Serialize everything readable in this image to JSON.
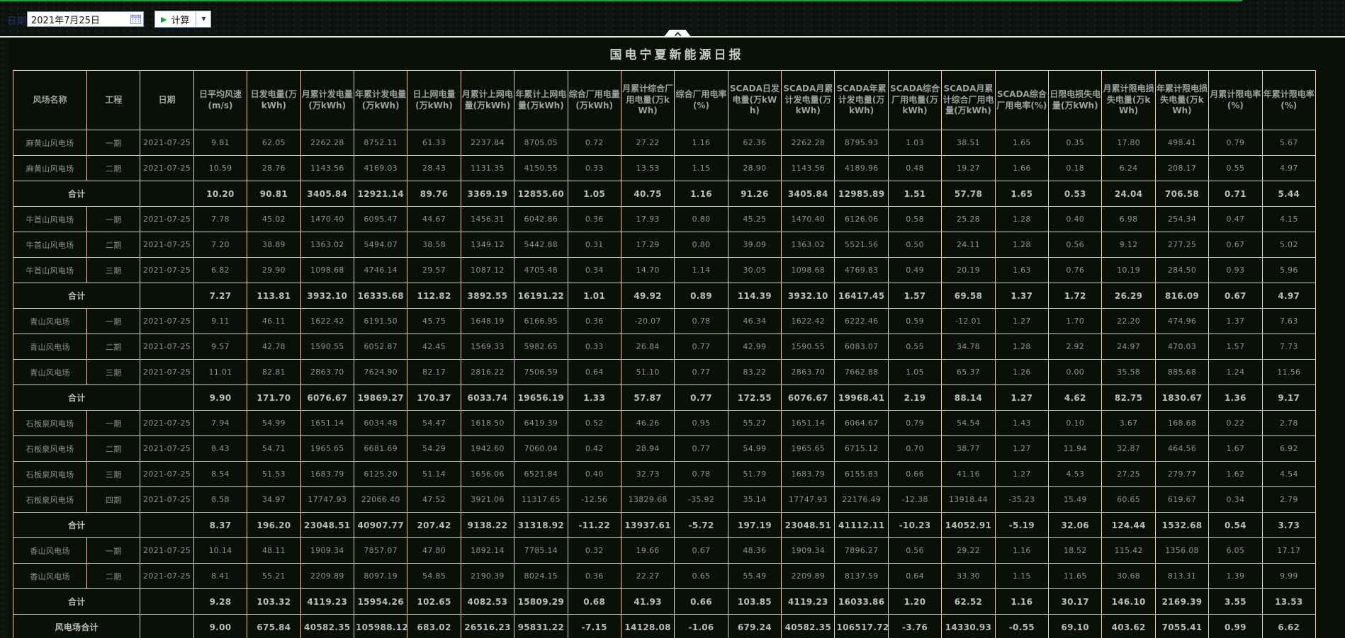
{
  "topbar": {
    "date_label": "日期",
    "date_value": "2021年7月25日",
    "calc_button_label": "计算",
    "icons": {
      "calendar": "calendar-icon",
      "play": "play-icon",
      "dropdown": "chevron-down-icon"
    },
    "colors": {
      "topline_green": "#17a83a",
      "button_play_green": "#12a33a",
      "dropdown_navy": "#24356e"
    }
  },
  "panel": {
    "title": "国电宁夏新能源日报",
    "colors": {
      "panel_bg": "#081008",
      "table_border": "#f0c9ba",
      "text_normal": "#8d9390",
      "text_subtotal": "#b7bdba"
    }
  },
  "table": {
    "headers": [
      "风场名称",
      "工程",
      "日期",
      "日平均风速(m/s)",
      "日发电量(万kWh)",
      "月累计发电量(万kWh)",
      "年累计发电量(万kWh)",
      "日上网电量(万kWh)",
      "月累计上网电量(万kWh)",
      "年累计上网电量(万kWh)",
      "综合厂用电量(万kWh)",
      "月累计综合厂用电量(万kWh)",
      "综合厂用电率(%)",
      "SCADA日发电量(万kWh)",
      "SCADA月累计发电量(万kWh)",
      "SCADA年累计发电量(万kWh)",
      "SCADA综合厂用电量(万kWh)",
      "SCADA月累计综合厂用电量(万kWh)",
      "SCADA综合厂用电率(%)",
      "日限电损失电量(万kWh)",
      "月累计限电损失电量(万kWh)",
      "年累计限电损失电量(万kWh)",
      "月累计限电率(%)",
      "年累计限电率(%)"
    ],
    "rows": [
      {
        "type": "data",
        "farm": "麻黄山风电场",
        "phase": "一期",
        "date": "2021-07-25",
        "values": [
          "9.81",
          "62.05",
          "2262.28",
          "8752.11",
          "61.33",
          "2237.84",
          "8705.05",
          "0.72",
          "27.22",
          "1.16",
          "62.36",
          "2262.28",
          "8795.93",
          "1.03",
          "38.51",
          "1.65",
          "0.35",
          "17.80",
          "498.41",
          "0.79",
          "5.67"
        ]
      },
      {
        "type": "data",
        "farm": "麻黄山风电场",
        "phase": "二期",
        "date": "2021-07-25",
        "values": [
          "10.59",
          "28.76",
          "1143.56",
          "4169.03",
          "28.43",
          "1131.35",
          "4150.55",
          "0.33",
          "13.53",
          "1.15",
          "28.90",
          "1143.56",
          "4189.96",
          "0.48",
          "19.27",
          "1.66",
          "0.18",
          "6.24",
          "208.17",
          "0.55",
          "4.97"
        ]
      },
      {
        "type": "subtotal",
        "label": "合计",
        "values": [
          "10.20",
          "90.81",
          "3405.84",
          "12921.14",
          "89.76",
          "3369.19",
          "12855.60",
          "1.05",
          "40.75",
          "1.16",
          "91.26",
          "3405.84",
          "12985.89",
          "1.51",
          "57.78",
          "1.65",
          "0.53",
          "24.04",
          "706.58",
          "0.71",
          "5.44"
        ]
      },
      {
        "type": "data",
        "farm": "牛首山风电场",
        "phase": "一期",
        "date": "2021-07-25",
        "values": [
          "7.78",
          "45.02",
          "1470.40",
          "6095.47",
          "44.67",
          "1456.31",
          "6042.86",
          "0.36",
          "17.93",
          "0.80",
          "45.25",
          "1470.40",
          "6126.06",
          "0.58",
          "25.28",
          "1.28",
          "0.40",
          "6.98",
          "254.34",
          "0.47",
          "4.15"
        ]
      },
      {
        "type": "data",
        "farm": "牛首山风电场",
        "phase": "二期",
        "date": "2021-07-25",
        "values": [
          "7.20",
          "38.89",
          "1363.02",
          "5494.07",
          "38.58",
          "1349.12",
          "5442.88",
          "0.31",
          "17.29",
          "0.80",
          "39.09",
          "1363.02",
          "5521.56",
          "0.50",
          "24.11",
          "1.28",
          "0.56",
          "9.12",
          "277.25",
          "0.67",
          "5.02"
        ]
      },
      {
        "type": "data",
        "farm": "牛首山风电场",
        "phase": "三期",
        "date": "2021-07-25",
        "values": [
          "6.82",
          "29.90",
          "1098.68",
          "4746.14",
          "29.57",
          "1087.12",
          "4705.48",
          "0.34",
          "14.70",
          "1.14",
          "30.05",
          "1098.68",
          "4769.83",
          "0.49",
          "20.19",
          "1.63",
          "0.76",
          "10.19",
          "284.50",
          "0.93",
          "5.96"
        ]
      },
      {
        "type": "subtotal",
        "label": "合计",
        "values": [
          "7.27",
          "113.81",
          "3932.10",
          "16335.68",
          "112.82",
          "3892.55",
          "16191.22",
          "1.01",
          "49.92",
          "0.89",
          "114.39",
          "3932.10",
          "16417.45",
          "1.57",
          "69.58",
          "1.37",
          "1.72",
          "26.29",
          "816.09",
          "0.67",
          "4.97"
        ]
      },
      {
        "type": "data",
        "farm": "青山风电场",
        "phase": "一期",
        "date": "2021-07-25",
        "values": [
          "9.11",
          "46.11",
          "1622.42",
          "6191.50",
          "45.75",
          "1648.19",
          "6166.95",
          "0.36",
          "-20.07",
          "0.78",
          "46.34",
          "1622.42",
          "6222.46",
          "0.59",
          "-12.01",
          "1.27",
          "1.70",
          "22.20",
          "474.96",
          "1.37",
          "7.63"
        ]
      },
      {
        "type": "data",
        "farm": "青山风电场",
        "phase": "二期",
        "date": "2021-07-25",
        "values": [
          "9.57",
          "42.78",
          "1590.55",
          "6052.87",
          "42.45",
          "1569.33",
          "5982.65",
          "0.33",
          "26.84",
          "0.77",
          "42.99",
          "1590.55",
          "6083.07",
          "0.55",
          "34.78",
          "1.28",
          "2.92",
          "24.97",
          "470.03",
          "1.57",
          "7.73"
        ]
      },
      {
        "type": "data",
        "farm": "青山风电场",
        "phase": "三期",
        "date": "2021-07-25",
        "values": [
          "11.01",
          "82.81",
          "2863.70",
          "7624.90",
          "82.17",
          "2816.22",
          "7506.59",
          "0.64",
          "51.10",
          "0.77",
          "83.22",
          "2863.70",
          "7662.88",
          "1.05",
          "65.37",
          "1.26",
          "0.00",
          "35.58",
          "885.68",
          "1.24",
          "11.56"
        ]
      },
      {
        "type": "subtotal",
        "label": "合计",
        "values": [
          "9.90",
          "171.70",
          "6076.67",
          "19869.27",
          "170.37",
          "6033.74",
          "19656.19",
          "1.33",
          "57.87",
          "0.77",
          "172.55",
          "6076.67",
          "19968.41",
          "2.19",
          "88.14",
          "1.27",
          "4.62",
          "82.75",
          "1830.67",
          "1.36",
          "9.17"
        ]
      },
      {
        "type": "data",
        "farm": "石板泉风电场",
        "phase": "一期",
        "date": "2021-07-25",
        "values": [
          "7.94",
          "54.99",
          "1651.14",
          "6034.48",
          "54.47",
          "1618.50",
          "6419.39",
          "0.52",
          "46.26",
          "0.95",
          "55.27",
          "1651.14",
          "6064.67",
          "0.79",
          "54.54",
          "1.43",
          "0.10",
          "3.67",
          "168.68",
          "0.22",
          "2.78"
        ]
      },
      {
        "type": "data",
        "farm": "石板泉风电场",
        "phase": "二期",
        "date": "2021-07-25",
        "values": [
          "8.43",
          "54.71",
          "1965.65",
          "6681.69",
          "54.29",
          "1942.60",
          "7060.04",
          "0.42",
          "28.94",
          "0.77",
          "54.99",
          "1965.65",
          "6715.12",
          "0.70",
          "38.77",
          "1.27",
          "11.94",
          "32.87",
          "464.56",
          "1.67",
          "6.92"
        ]
      },
      {
        "type": "data",
        "farm": "石板泉风电场",
        "phase": "三期",
        "date": "2021-07-25",
        "values": [
          "8.54",
          "51.53",
          "1683.79",
          "6125.20",
          "51.14",
          "1656.06",
          "6521.84",
          "0.40",
          "32.73",
          "0.78",
          "51.79",
          "1683.79",
          "6155.83",
          "0.66",
          "41.16",
          "1.27",
          "4.53",
          "27.25",
          "279.77",
          "1.62",
          "4.54"
        ]
      },
      {
        "type": "data",
        "farm": "石板泉风电场",
        "phase": "四期",
        "date": "2021-07-25",
        "values": [
          "8.58",
          "34.97",
          "17747.93",
          "22066.40",
          "47.52",
          "3921.06",
          "11317.65",
          "-12.56",
          "13829.68",
          "-35.92",
          "35.14",
          "17747.93",
          "22176.49",
          "-12.38",
          "13918.44",
          "-35.23",
          "15.49",
          "60.65",
          "619.67",
          "0.34",
          "2.79"
        ]
      },
      {
        "type": "subtotal",
        "label": "合计",
        "values": [
          "8.37",
          "196.20",
          "23048.51",
          "40907.77",
          "207.42",
          "9138.22",
          "31318.92",
          "-11.22",
          "13937.61",
          "-5.72",
          "197.19",
          "23048.51",
          "41112.11",
          "-10.23",
          "14052.91",
          "-5.19",
          "32.06",
          "124.44",
          "1532.68",
          "0.54",
          "3.73"
        ]
      },
      {
        "type": "data",
        "farm": "香山风电场",
        "phase": "一期",
        "date": "2021-07-25",
        "values": [
          "10.14",
          "48.11",
          "1909.34",
          "7857.07",
          "47.80",
          "1892.14",
          "7785.14",
          "0.32",
          "19.66",
          "0.67",
          "48.36",
          "1909.34",
          "7896.27",
          "0.56",
          "29.22",
          "1.16",
          "18.52",
          "115.42",
          "1356.08",
          "6.05",
          "17.17"
        ]
      },
      {
        "type": "data",
        "farm": "香山风电场",
        "phase": "二期",
        "date": "2021-07-25",
        "values": [
          "8.41",
          "55.21",
          "2209.89",
          "8097.19",
          "54.85",
          "2190.39",
          "8024.15",
          "0.36",
          "22.27",
          "0.65",
          "55.49",
          "2209.89",
          "8137.59",
          "0.64",
          "33.30",
          "1.15",
          "11.65",
          "30.68",
          "813.31",
          "1.39",
          "9.99"
        ]
      },
      {
        "type": "subtotal",
        "label": "合计",
        "values": [
          "9.28",
          "103.32",
          "4119.23",
          "15954.26",
          "102.65",
          "4082.53",
          "15809.29",
          "0.68",
          "41.93",
          "0.66",
          "103.85",
          "4119.23",
          "16033.86",
          "1.20",
          "62.52",
          "1.16",
          "30.17",
          "146.10",
          "2169.39",
          "3.55",
          "13.53"
        ]
      },
      {
        "type": "grand",
        "label": "风电场合计",
        "values": [
          "9.00",
          "675.84",
          "40582.35",
          "105988.12",
          "683.02",
          "26516.23",
          "95831.22",
          "-7.15",
          "14128.08",
          "-1.06",
          "679.24",
          "40582.35",
          "106517.72",
          "-3.76",
          "14330.93",
          "-0.55",
          "69.10",
          "403.62",
          "7055.41",
          "0.99",
          "6.62"
        ]
      }
    ]
  }
}
